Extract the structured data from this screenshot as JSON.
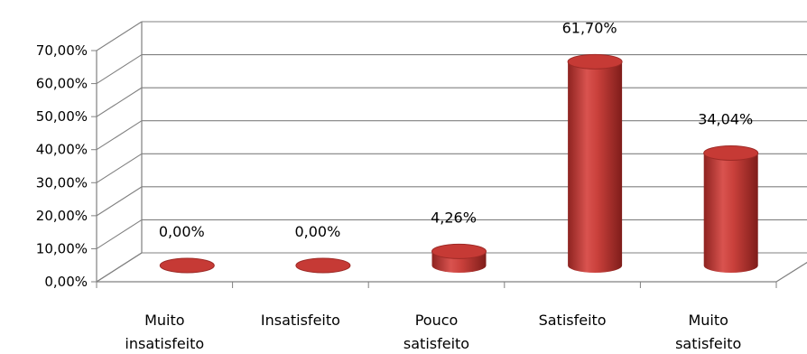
{
  "chart_data": {
    "type": "bar",
    "style": "3d-cylinder",
    "categories": [
      [
        "Muito",
        "insatisfeito"
      ],
      [
        "Insatisfeito"
      ],
      [
        "Pouco",
        "satisfeito"
      ],
      [
        "Satisfeito"
      ],
      [
        "Muito",
        "satisfeito"
      ]
    ],
    "values": [
      0.0,
      0.0,
      4.26,
      61.7,
      34.04
    ],
    "data_labels": [
      "0,00%",
      "0,00%",
      "4,26%",
      "61,70%",
      "34,04%"
    ],
    "ylim": [
      0,
      70
    ],
    "yticks": [
      "0,00%",
      "10,00%",
      "20,00%",
      "30,00%",
      "40,00%",
      "50,00%",
      "60,00%",
      "70,00%"
    ],
    "grid": true,
    "legend": "none",
    "bar_color": "#c0392b"
  }
}
